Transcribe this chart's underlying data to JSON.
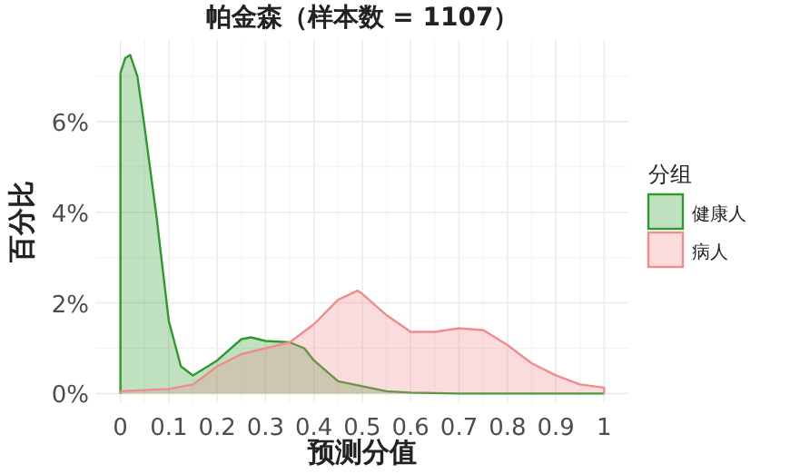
{
  "chart_data": {
    "type": "area",
    "title": "帕金森（样本数 = 1107）",
    "xlabel": "预测分值",
    "ylabel": "百分比",
    "legend_title": "分组",
    "legend": "right",
    "grid": true,
    "xlim": [
      -0.05,
      1.05
    ],
    "xticks": [
      0,
      0.1,
      0.2,
      0.3,
      0.4,
      0.5,
      0.6,
      0.7,
      0.8,
      0.9,
      1
    ],
    "ylim": [
      -0.2,
      7.8
    ],
    "yticks": [
      {
        "value": 0,
        "label": "0%"
      },
      {
        "value": 2,
        "label": "2%"
      },
      {
        "value": 4,
        "label": "4%"
      },
      {
        "value": 6,
        "label": "6%"
      }
    ],
    "series": [
      {
        "name": "健康人",
        "color": "#2e9a2e",
        "x": [
          0,
          0.01,
          0.02,
          0.035,
          0.05,
          0.075,
          0.1,
          0.125,
          0.15,
          0.2,
          0.25,
          0.27,
          0.3,
          0.35,
          0.38,
          0.4,
          0.45,
          0.5,
          0.55,
          0.6,
          0.7,
          0.8,
          0.9,
          1
        ],
        "values": [
          7.07,
          7.4,
          7.47,
          7.0,
          5.87,
          3.87,
          1.6,
          0.6,
          0.4,
          0.73,
          1.2,
          1.24,
          1.16,
          1.13,
          1.0,
          0.73,
          0.27,
          0.16,
          0.05,
          0.02,
          0,
          0,
          0,
          0
        ]
      },
      {
        "name": "病人",
        "color": "#f08c8c",
        "x": [
          0,
          0.1,
          0.15,
          0.2,
          0.25,
          0.3,
          0.35,
          0.4,
          0.45,
          0.49,
          0.5,
          0.55,
          0.6,
          0.65,
          0.7,
          0.75,
          0.8,
          0.85,
          0.9,
          0.95,
          1
        ],
        "values": [
          0.05,
          0.1,
          0.2,
          0.6,
          0.87,
          1.0,
          1.13,
          1.53,
          2.07,
          2.27,
          2.2,
          1.73,
          1.36,
          1.36,
          1.44,
          1.4,
          1.07,
          0.67,
          0.4,
          0.2,
          0.13
        ]
      }
    ]
  }
}
